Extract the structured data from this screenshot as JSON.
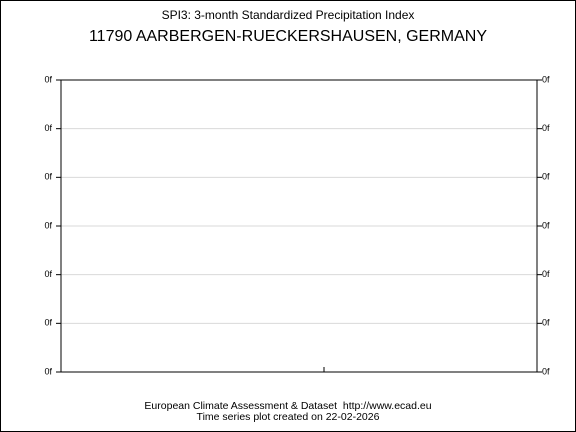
{
  "chart_data": {
    "type": "line",
    "title": "SPI3: 3-month Standardized Precipitation Index",
    "subtitle": "11790 AARBERGEN-RUECKERSHAUSEN, GERMANY",
    "footer": [
      "European Climate Assessment & Dataset  http://www.ecad.eu",
      "Time series plot created on 22-02-2026"
    ],
    "ylim": [
      -3,
      3
    ],
    "yticks": [
      {
        "value": -3,
        "label": "0f"
      },
      {
        "value": -2,
        "label": "0f"
      },
      {
        "value": -1,
        "label": "0f"
      },
      {
        "value": 0,
        "label": "0f"
      },
      {
        "value": 1,
        "label": "0f"
      },
      {
        "value": 2,
        "label": "0f"
      },
      {
        "value": 3,
        "label": "0f"
      }
    ],
    "grid": true
  }
}
